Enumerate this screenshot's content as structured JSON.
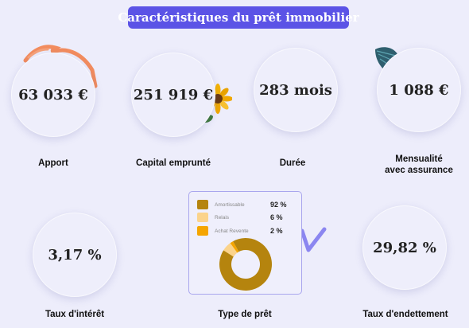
{
  "title": "Caractéristiques du prêt immobilier",
  "cards": [
    {
      "value": "63 033 €",
      "label": "Apport"
    },
    {
      "value": "251 919 €",
      "label": "Capital emprunté"
    },
    {
      "value": "283 mois",
      "label": "Durée"
    },
    {
      "value": "1 088 €",
      "label_line1": "Mensualité",
      "label_line2": "avec assurance"
    },
    {
      "value": "3,17 %",
      "label": "Taux d'intérêt"
    },
    {
      "label": "Type de prêt"
    },
    {
      "value": "29,82 %",
      "label": "Taux d'endettement"
    }
  ],
  "loan_types": [
    {
      "name": "Amortissable",
      "pct_text": "92 %",
      "share": 92,
      "color": "#b5840e"
    },
    {
      "name": "Relais",
      "pct_text": "6 %",
      "share": 6,
      "color": "#fbd38b"
    },
    {
      "name": "Achat Revente",
      "pct_text": "2 %",
      "share": 2,
      "color": "#f5a500"
    }
  ],
  "colors": {
    "accent": "#5b53e6",
    "background": "#ededfb"
  }
}
